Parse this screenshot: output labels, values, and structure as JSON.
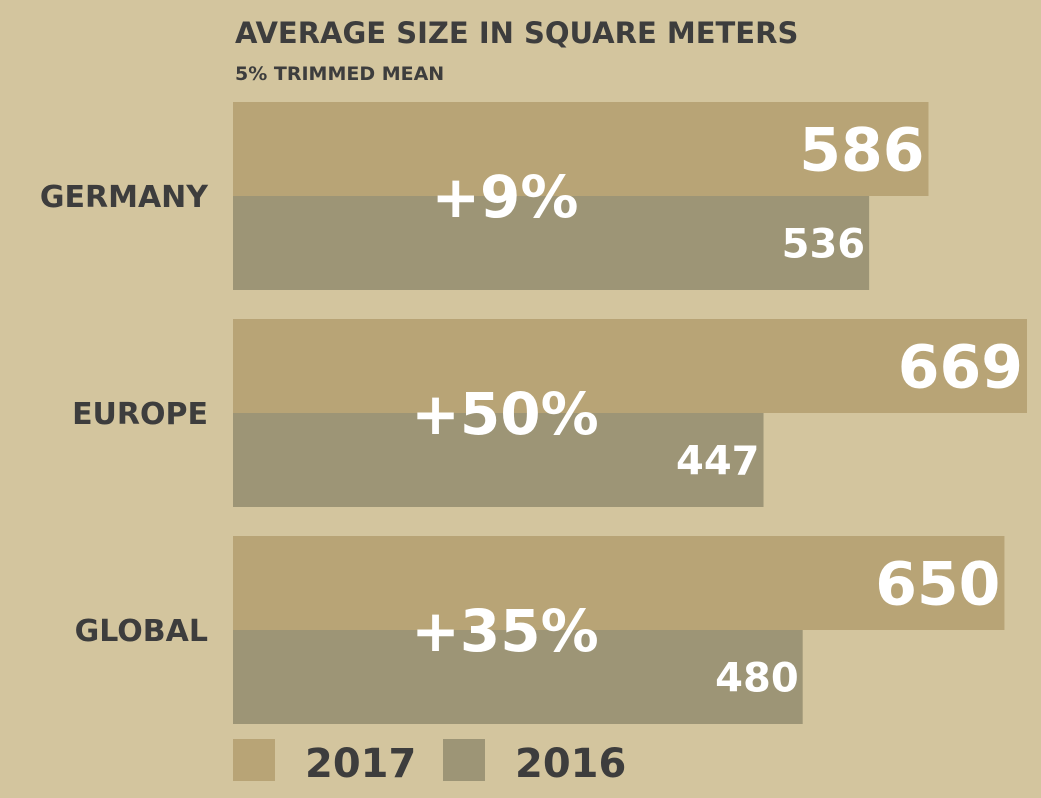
{
  "chart_data": {
    "type": "bar",
    "orientation": "horizontal",
    "title": "AVERAGE SIZE IN SQUARE METERS",
    "subtitle": "5% TRIMMED MEAN",
    "categories": [
      "GERMANY",
      "EUROPE",
      "GLOBAL"
    ],
    "series": [
      {
        "name": "2017",
        "values": [
          586,
          669,
          650
        ],
        "color": "#b8a476"
      },
      {
        "name": "2016",
        "values": [
          536,
          447,
          480
        ],
        "color": "#9d9576"
      }
    ],
    "changes": [
      "+9%",
      "+50%",
      "+35%"
    ],
    "xlim": [
      0,
      669
    ],
    "grid": false,
    "legend": "bottom-left"
  }
}
